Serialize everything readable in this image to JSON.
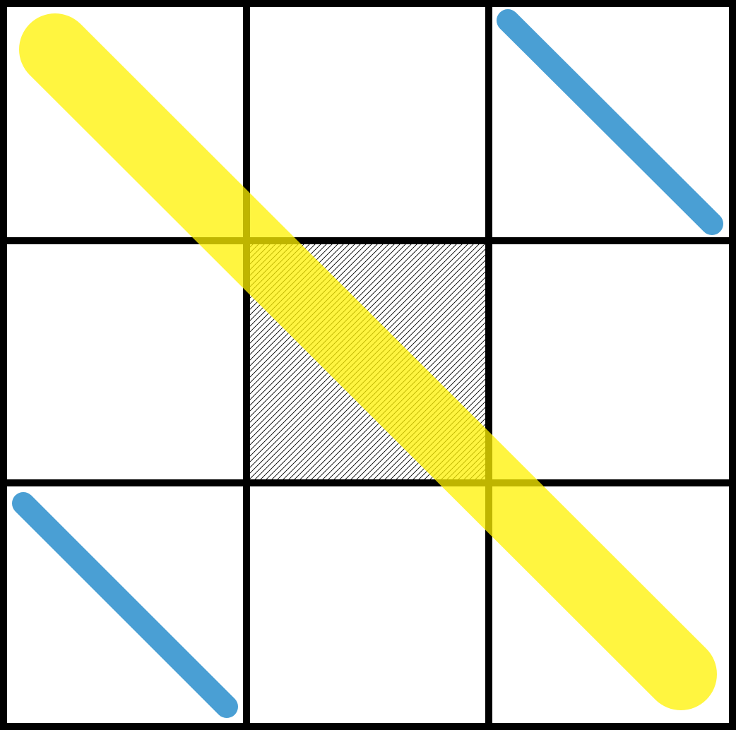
{
  "grid": {
    "rows": 3,
    "cols": 3,
    "line_color": "#000000",
    "background": "#ffffff"
  },
  "cells": [
    {
      "row": 0,
      "col": 0,
      "fill": "blank"
    },
    {
      "row": 0,
      "col": 1,
      "fill": "blank"
    },
    {
      "row": 0,
      "col": 2,
      "fill": "blank"
    },
    {
      "row": 1,
      "col": 0,
      "fill": "blank"
    },
    {
      "row": 1,
      "col": 1,
      "fill": "hatched"
    },
    {
      "row": 1,
      "col": 2,
      "fill": "blank"
    },
    {
      "row": 2,
      "col": 0,
      "fill": "blank"
    },
    {
      "row": 2,
      "col": 1,
      "fill": "blank"
    },
    {
      "row": 2,
      "col": 2,
      "fill": "blank"
    }
  ],
  "strokes": [
    {
      "name": "yellow-diagonal-stroke",
      "color": "#fff200",
      "opacity": 0.75,
      "from_cell": [
        0,
        0
      ],
      "to_cell": [
        2,
        2
      ],
      "weight": "thick"
    },
    {
      "name": "blue-diagonal-stroke-top-right",
      "color": "#4a9fd4",
      "opacity": 1,
      "from_cell": [
        0,
        2
      ],
      "to_cell": [
        0,
        2
      ],
      "weight": "thin"
    },
    {
      "name": "blue-diagonal-stroke-bottom-left",
      "color": "#4a9fd4",
      "opacity": 1,
      "from_cell": [
        2,
        0
      ],
      "to_cell": [
        2,
        0
      ],
      "weight": "thin"
    }
  ]
}
